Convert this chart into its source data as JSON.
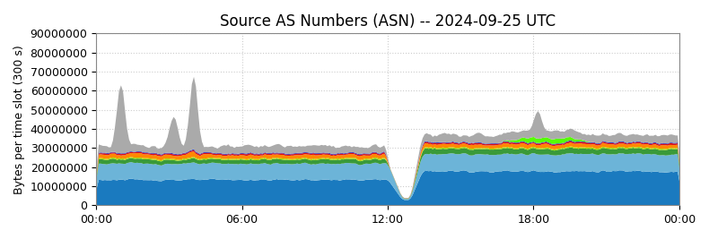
{
  "title": "Source AS Numbers (ASN) -- 2024-09-25 UTC",
  "ylabel": "Bytes per time slot (300 s)",
  "xlim": [
    0,
    288
  ],
  "ylim": [
    0,
    90000000
  ],
  "yticks": [
    0,
    10000000,
    20000000,
    30000000,
    40000000,
    50000000,
    60000000,
    70000000,
    80000000,
    90000000
  ],
  "xtick_positions": [
    0,
    72,
    144,
    216,
    288
  ],
  "xtick_labels": [
    "00:00",
    "06:00",
    "12:00",
    "18:00",
    "00:00"
  ],
  "colors": [
    "#1a7abf",
    "#6cb4d8",
    "#3a9a3a",
    "#aadd00",
    "#ff8800",
    "#dd1111",
    "#2222bb",
    "#55ff00",
    "#aaaaaa"
  ],
  "grid_color": "#cccccc",
  "title_fontsize": 12,
  "axis_fontsize": 9,
  "tick_fontsize": 9
}
